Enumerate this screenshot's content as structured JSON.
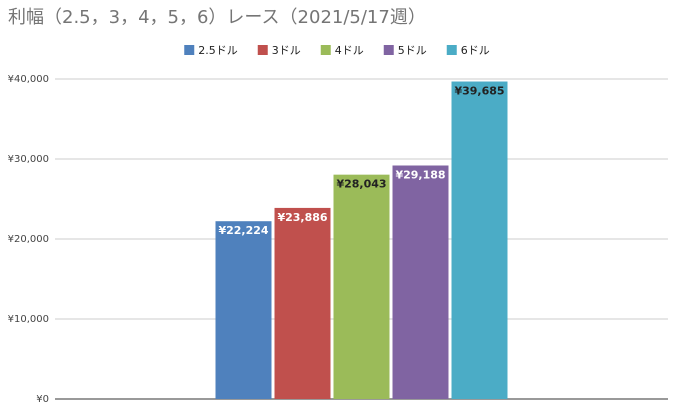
{
  "chart_data": {
    "type": "bar",
    "title": "利幅（2.5，3，4，5，6）レース（2021/5/17週）",
    "categories": [
      null
    ],
    "series": [
      {
        "name": "2.5ドル",
        "color": "#4f81bd",
        "label_color": "#ffffff",
        "values": [
          22224
        ],
        "value_labels": [
          "¥22,224"
        ]
      },
      {
        "name": "3ドル",
        "color": "#c0504d",
        "label_color": "#ffffff",
        "values": [
          23886
        ],
        "value_labels": [
          "¥23,886"
        ]
      },
      {
        "name": "4ドル",
        "color": "#9bbb59",
        "label_color": "#222222",
        "values": [
          28043
        ],
        "value_labels": [
          "¥28,043"
        ]
      },
      {
        "name": "5ドル",
        "color": "#8064a2",
        "label_color": "#ffffff",
        "values": [
          29188
        ],
        "value_labels": [
          "¥29,188"
        ]
      },
      {
        "name": "6ドル",
        "color": "#4bacc6",
        "label_color": "#222222",
        "values": [
          39685
        ],
        "value_labels": [
          "¥39,685"
        ]
      }
    ],
    "ylim": [
      0,
      40000
    ],
    "yticks": [
      {
        "value": 0,
        "label": "¥0"
      },
      {
        "value": 10000,
        "label": "¥10,000"
      },
      {
        "value": 20000,
        "label": "¥20,000"
      },
      {
        "value": 30000,
        "label": "¥30,000"
      },
      {
        "value": 40000,
        "label": "¥40,000"
      }
    ],
    "grid": true,
    "legend": "top"
  }
}
